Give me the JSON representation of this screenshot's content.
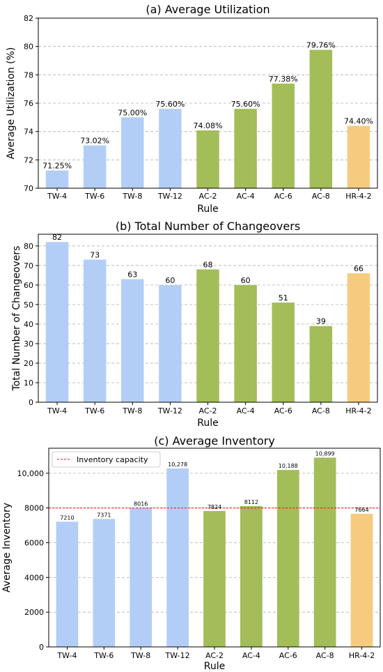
{
  "chart_data": [
    {
      "type": "bar",
      "title": "(a) Average Utilization",
      "xlabel": "Rule",
      "ylabel": "Average Utilization (%)",
      "categories": [
        "TW-4",
        "TW-6",
        "TW-8",
        "TW-12",
        "AC-2",
        "AC-4",
        "AC-6",
        "AC-8",
        "HR-4-2"
      ],
      "values": [
        71.25,
        73.02,
        75.0,
        75.6,
        74.08,
        75.6,
        77.38,
        79.76,
        74.4
      ],
      "value_labels": [
        "71.25%",
        "73.02%",
        "75.00%",
        "75.60%",
        "74.08%",
        "75.60%",
        "77.38%",
        "79.76%",
        "74.40%"
      ],
      "ylim": [
        70,
        82
      ],
      "yticks": [
        70,
        72,
        74,
        76,
        78,
        80,
        82
      ],
      "ytick_labels": [
        "70",
        "72",
        "74",
        "76",
        "78",
        "80",
        "82"
      ],
      "grid": "y-dashed"
    },
    {
      "type": "bar",
      "title": "(b) Total Number of Changeovers",
      "xlabel": "Rule",
      "ylabel": "Total Number of Changeovers",
      "categories": [
        "TW-4",
        "TW-6",
        "TW-8",
        "TW-12",
        "AC-2",
        "AC-4",
        "AC-6",
        "AC-8",
        "HR-4-2"
      ],
      "values": [
        82,
        73,
        63,
        60,
        68,
        60,
        51,
        39,
        66
      ],
      "value_labels": [
        "82",
        "73",
        "63",
        "60",
        "68",
        "60",
        "51",
        "39",
        "66"
      ],
      "ylim": [
        0,
        86
      ],
      "yticks": [
        0,
        10,
        20,
        30,
        40,
        50,
        60,
        70,
        80
      ],
      "ytick_labels": [
        "0",
        "10",
        "20",
        "30",
        "40",
        "50",
        "60",
        "70",
        "80"
      ],
      "grid": "y-dashed"
    },
    {
      "type": "bar",
      "title": "(c) Average Inventory",
      "xlabel": "Rule",
      "ylabel": "Average Inventory",
      "categories": [
        "TW-4",
        "TW-6",
        "TW-8",
        "TW-12",
        "AC-2",
        "AC-4",
        "AC-6",
        "AC-8",
        "HR-4-2"
      ],
      "values": [
        7210,
        7371,
        8016,
        10278,
        7824,
        8112,
        10188,
        10899,
        7664
      ],
      "value_labels": [
        "7210",
        "7371",
        "8016",
        "10,278",
        "7824",
        "8112",
        "10,188",
        "10,899",
        "7664"
      ],
      "ylim": [
        0,
        11440
      ],
      "yticks": [
        0,
        2000,
        4000,
        6000,
        8000,
        10000
      ],
      "ytick_labels": [
        "0",
        "2000",
        "4000",
        "6000",
        "8000",
        "10,000"
      ],
      "grid": "y-dashed",
      "reference_line": {
        "value": 8000,
        "label": "Inventory capacity",
        "color": "#ff0000",
        "style": "dashed"
      },
      "legend": {
        "position": "top-left",
        "entries": [
          "Inventory capacity"
        ]
      }
    }
  ],
  "colors": {
    "TW": "#b3cef6",
    "AC": "#a3bd58",
    "HR": "#f7cb7f"
  }
}
